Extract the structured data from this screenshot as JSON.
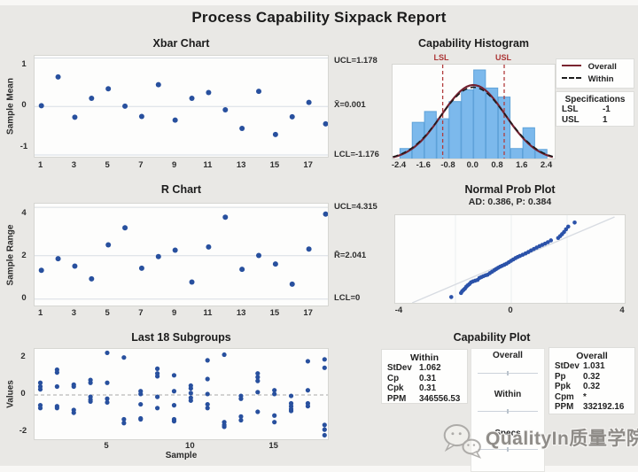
{
  "page": {
    "title": "Process Capability Sixpack Report",
    "watermark_text": "QualityIn质量学院"
  },
  "chart_data": [
    {
      "id": "xbar",
      "type": "scatter",
      "title": "Xbar Chart",
      "ylabel": "Sample Mean",
      "x": [
        1,
        2,
        3,
        4,
        5,
        6,
        7,
        8,
        9,
        10,
        11,
        12,
        13,
        14,
        15,
        16,
        17,
        18
      ],
      "values": [
        0.02,
        0.72,
        -0.26,
        0.2,
        0.43,
        0.01,
        -0.24,
        0.53,
        -0.33,
        0.2,
        0.34,
        -0.08,
        -0.53,
        0.37,
        -0.68,
        -0.25,
        0.1,
        -0.42
      ],
      "ucl": 1.178,
      "center": 0.001,
      "lcl": -1.176,
      "annotations": {
        "ucl": "UCL=1.178",
        "center": "X̄=0.001",
        "lcl": "LCL=-1.176"
      },
      "yticks": [
        1,
        0,
        -1
      ],
      "xticks": [
        1,
        3,
        5,
        7,
        9,
        11,
        13,
        15,
        17
      ],
      "ylim": [
        -1.25,
        1.25
      ]
    },
    {
      "id": "rchart",
      "type": "scatter",
      "title": "R Chart",
      "ylabel": "Sample Range",
      "x": [
        1,
        2,
        3,
        4,
        5,
        6,
        7,
        8,
        9,
        10,
        11,
        12,
        13,
        14,
        15,
        16,
        17,
        18
      ],
      "values": [
        1.35,
        1.9,
        1.55,
        0.95,
        2.55,
        3.35,
        1.45,
        2.0,
        2.3,
        0.8,
        2.45,
        3.85,
        1.4,
        2.05,
        1.65,
        0.7,
        2.35,
        4.0
      ],
      "ucl": 4.315,
      "center": 2.041,
      "lcl": 0,
      "annotations": {
        "ucl": "UCL=4.315",
        "center": "R̄=2.041",
        "lcl": "LCL=0"
      },
      "yticks": [
        4,
        2,
        0
      ],
      "xticks": [
        1,
        3,
        5,
        7,
        9,
        11,
        13,
        15,
        17
      ],
      "ylim": [
        -0.2,
        4.6
      ]
    },
    {
      "id": "last18",
      "type": "scatter-groups",
      "title": "Last 18 Subgroups",
      "ylabel": "Values",
      "xlabel": "Sample",
      "groups": [
        [
          0.65,
          0.45,
          0.3,
          -0.55,
          -0.7
        ],
        [
          1.35,
          1.2,
          0.45,
          -0.6,
          -0.7
        ],
        [
          0.55,
          0.45,
          -0.8,
          -0.95
        ],
        [
          0.8,
          0.65,
          -0.1,
          -0.25,
          -0.35
        ],
        [
          2.25,
          0.65,
          -0.2,
          -0.4
        ],
        [
          2.0,
          -1.3,
          -1.5
        ],
        [
          0.2,
          0.05,
          -0.5,
          -1.25,
          -1.3
        ],
        [
          1.4,
          1.15,
          1.0,
          -0.1,
          -0.7
        ],
        [
          1.05,
          0.2,
          -0.55,
          -1.3,
          -1.4
        ],
        [
          0.5,
          0.35,
          0.1,
          -0.15,
          -0.3
        ],
        [
          1.85,
          0.85,
          0.05,
          -0.5,
          -0.7
        ],
        [
          2.15,
          -1.45,
          -1.6,
          -1.7
        ],
        [
          -0.05,
          -0.2,
          -1.15,
          -1.35
        ],
        [
          1.15,
          0.95,
          0.75,
          0.15,
          -0.9
        ],
        [
          0.25,
          0.05,
          -1.1,
          -1.45
        ],
        [
          -0.05,
          -0.45,
          -0.6,
          -0.75,
          -0.85
        ],
        [
          1.8,
          0.25,
          -0.45,
          -0.6
        ],
        [
          1.9,
          1.45,
          -1.6,
          -1.85,
          -2.15
        ]
      ],
      "center": 0,
      "yticks": [
        2,
        0,
        -2
      ],
      "xticks": [
        5,
        10,
        15
      ],
      "ylim": [
        -2.46,
        2.46
      ]
    },
    {
      "id": "histogram",
      "type": "histogram",
      "title": "Capability Histogram",
      "bin_centers": [
        -2.2,
        -1.8,
        -1.4,
        -1.0,
        -0.6,
        -0.2,
        0.2,
        0.6,
        1.0,
        1.4,
        1.8,
        2.2
      ],
      "bin_width": 0.4,
      "heights": [
        1.3,
        4.2,
        5.4,
        4.6,
        6.5,
        7.8,
        10,
        8,
        7,
        1.3,
        3.6,
        1.2
      ],
      "xticks": [
        "-2.4",
        "-1.6",
        "-0.8",
        "0.0",
        "0.8",
        "1.6",
        "2.4"
      ],
      "lsl": -1,
      "usl": 1,
      "lsl_label": "LSL",
      "usl_label": "USL",
      "curves": {
        "overall": {
          "mean": 0,
          "sd": 1.031
        },
        "within": {
          "mean": 0,
          "sd": 1.062
        }
      },
      "legend": [
        "Overall",
        "Within"
      ],
      "specs": {
        "title": "Specifications",
        "rows": [
          [
            "LSL",
            "-1"
          ],
          [
            "USL",
            "1"
          ]
        ]
      }
    },
    {
      "id": "probplot",
      "type": "scatter",
      "title": "Normal Prob Plot",
      "subtitle": "AD: 0.386, P: 0.384",
      "xticks": [
        -4,
        0,
        4
      ],
      "xlim": [
        -4.15,
        4.15
      ],
      "points": [
        [
          -2.15,
          0.085
        ],
        [
          -1.8,
          0.13
        ],
        [
          -1.76,
          0.15
        ],
        [
          -1.71,
          0.165
        ],
        [
          -1.66,
          0.18
        ],
        [
          -1.61,
          0.2
        ],
        [
          -1.56,
          0.215
        ],
        [
          -1.5,
          0.23
        ],
        [
          -1.44,
          0.25
        ],
        [
          -1.37,
          0.26
        ],
        [
          -1.29,
          0.268
        ],
        [
          -1.21,
          0.276
        ],
        [
          -1.14,
          0.298
        ],
        [
          -1.07,
          0.308
        ],
        [
          -1.0,
          0.318
        ],
        [
          -0.92,
          0.328
        ],
        [
          -0.85,
          0.334
        ],
        [
          -0.77,
          0.352
        ],
        [
          -0.69,
          0.368
        ],
        [
          -0.61,
          0.384
        ],
        [
          -0.54,
          0.398
        ],
        [
          -0.47,
          0.412
        ],
        [
          -0.4,
          0.424
        ],
        [
          -0.33,
          0.434
        ],
        [
          -0.25,
          0.446
        ],
        [
          -0.17,
          0.458
        ],
        [
          -0.09,
          0.474
        ],
        [
          -0.01,
          0.49
        ],
        [
          0.07,
          0.505
        ],
        [
          0.15,
          0.52
        ],
        [
          0.23,
          0.533
        ],
        [
          0.31,
          0.544
        ],
        [
          0.41,
          0.558
        ],
        [
          0.51,
          0.572
        ],
        [
          0.61,
          0.588
        ],
        [
          0.71,
          0.606
        ],
        [
          0.81,
          0.622
        ],
        [
          0.91,
          0.638
        ],
        [
          1.01,
          0.654
        ],
        [
          1.11,
          0.668
        ],
        [
          1.21,
          0.682
        ],
        [
          1.31,
          0.698
        ],
        [
          1.42,
          0.718
        ],
        [
          1.68,
          0.745
        ],
        [
          1.75,
          0.766
        ],
        [
          1.82,
          0.788
        ],
        [
          1.89,
          0.812
        ],
        [
          1.96,
          0.842
        ],
        [
          2.04,
          0.872
        ],
        [
          2.27,
          0.918
        ]
      ]
    },
    {
      "id": "capplot",
      "type": "table",
      "title": "Capability Plot",
      "within": {
        "title": "Within",
        "rows": [
          [
            "StDev",
            "1.062"
          ],
          [
            "Cp",
            "0.31"
          ],
          [
            "Cpk",
            "0.31"
          ],
          [
            "PPM",
            "346556.53"
          ]
        ]
      },
      "overall": {
        "title": "Overall",
        "rows": [
          [
            "StDev",
            "1.031"
          ],
          [
            "Pp",
            "0.32"
          ],
          [
            "Ppk",
            "0.32"
          ],
          [
            "Cpm",
            "*"
          ],
          [
            "PPM",
            "332192.16"
          ]
        ]
      },
      "middle": {
        "rows": [
          "Overall",
          "Within",
          "Specs"
        ]
      }
    }
  ]
}
